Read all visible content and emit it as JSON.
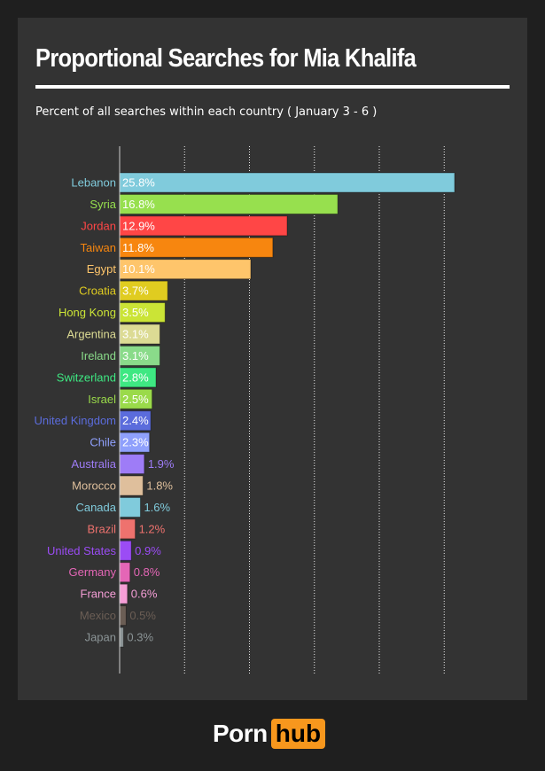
{
  "chart_data": {
    "type": "bar",
    "orientation": "horizontal",
    "title": "Proportional Searches for Mia Khalifa",
    "subtitle": "Percent of all searches within each country ( January 3 - 6 )",
    "xlabel": "",
    "ylabel": "",
    "xlim": [
      0,
      26.5
    ],
    "grid_x": [
      5,
      10,
      15,
      20,
      25
    ],
    "value_suffix": "%",
    "categories": [
      "Lebanon",
      "Syria",
      "Jordan",
      "Taiwan",
      "Egypt",
      "Croatia",
      "Hong Kong",
      "Argentina",
      "Ireland",
      "Switzerland",
      "Israel",
      "United Kingdom",
      "Chile",
      "Australia",
      "Morocco",
      "Canada",
      "Brazil",
      "United States",
      "Germany",
      "France",
      "Mexico",
      "Japan"
    ],
    "values": [
      25.8,
      16.8,
      12.9,
      11.8,
      10.1,
      3.7,
      3.5,
      3.1,
      3.1,
      2.8,
      2.5,
      2.4,
      2.3,
      1.9,
      1.8,
      1.6,
      1.2,
      0.9,
      0.8,
      0.6,
      0.5,
      0.3
    ],
    "value_labels": [
      "25.8%",
      "16.8%",
      "12.9%",
      "11.8%",
      "10.1%",
      "3.7%",
      "3.5%",
      "3.1%",
      "3.1%",
      "2.8%",
      "2.5%",
      "2.4%",
      "2.3%",
      "1.9%",
      "1.8%",
      "1.6%",
      "1.2%",
      "0.9%",
      "0.8%",
      "0.6%",
      "0.5%",
      "0.3%"
    ],
    "colors": [
      "#80cbdc",
      "#97e04e",
      "#ff4646",
      "#f7860f",
      "#fec56b",
      "#e0cc20",
      "#cbe436",
      "#dcdb94",
      "#8adb8a",
      "#3ee882",
      "#9ada4a",
      "#5b6cdc",
      "#8fa0fc",
      "#9e7cf7",
      "#dfbf9c",
      "#80cbdc",
      "#ee726e",
      "#9b4cf5",
      "#e466b6",
      "#f59ed6",
      "#6b5e55",
      "#8b9496"
    ]
  },
  "brand": {
    "left": "Porn",
    "right": "hub"
  }
}
